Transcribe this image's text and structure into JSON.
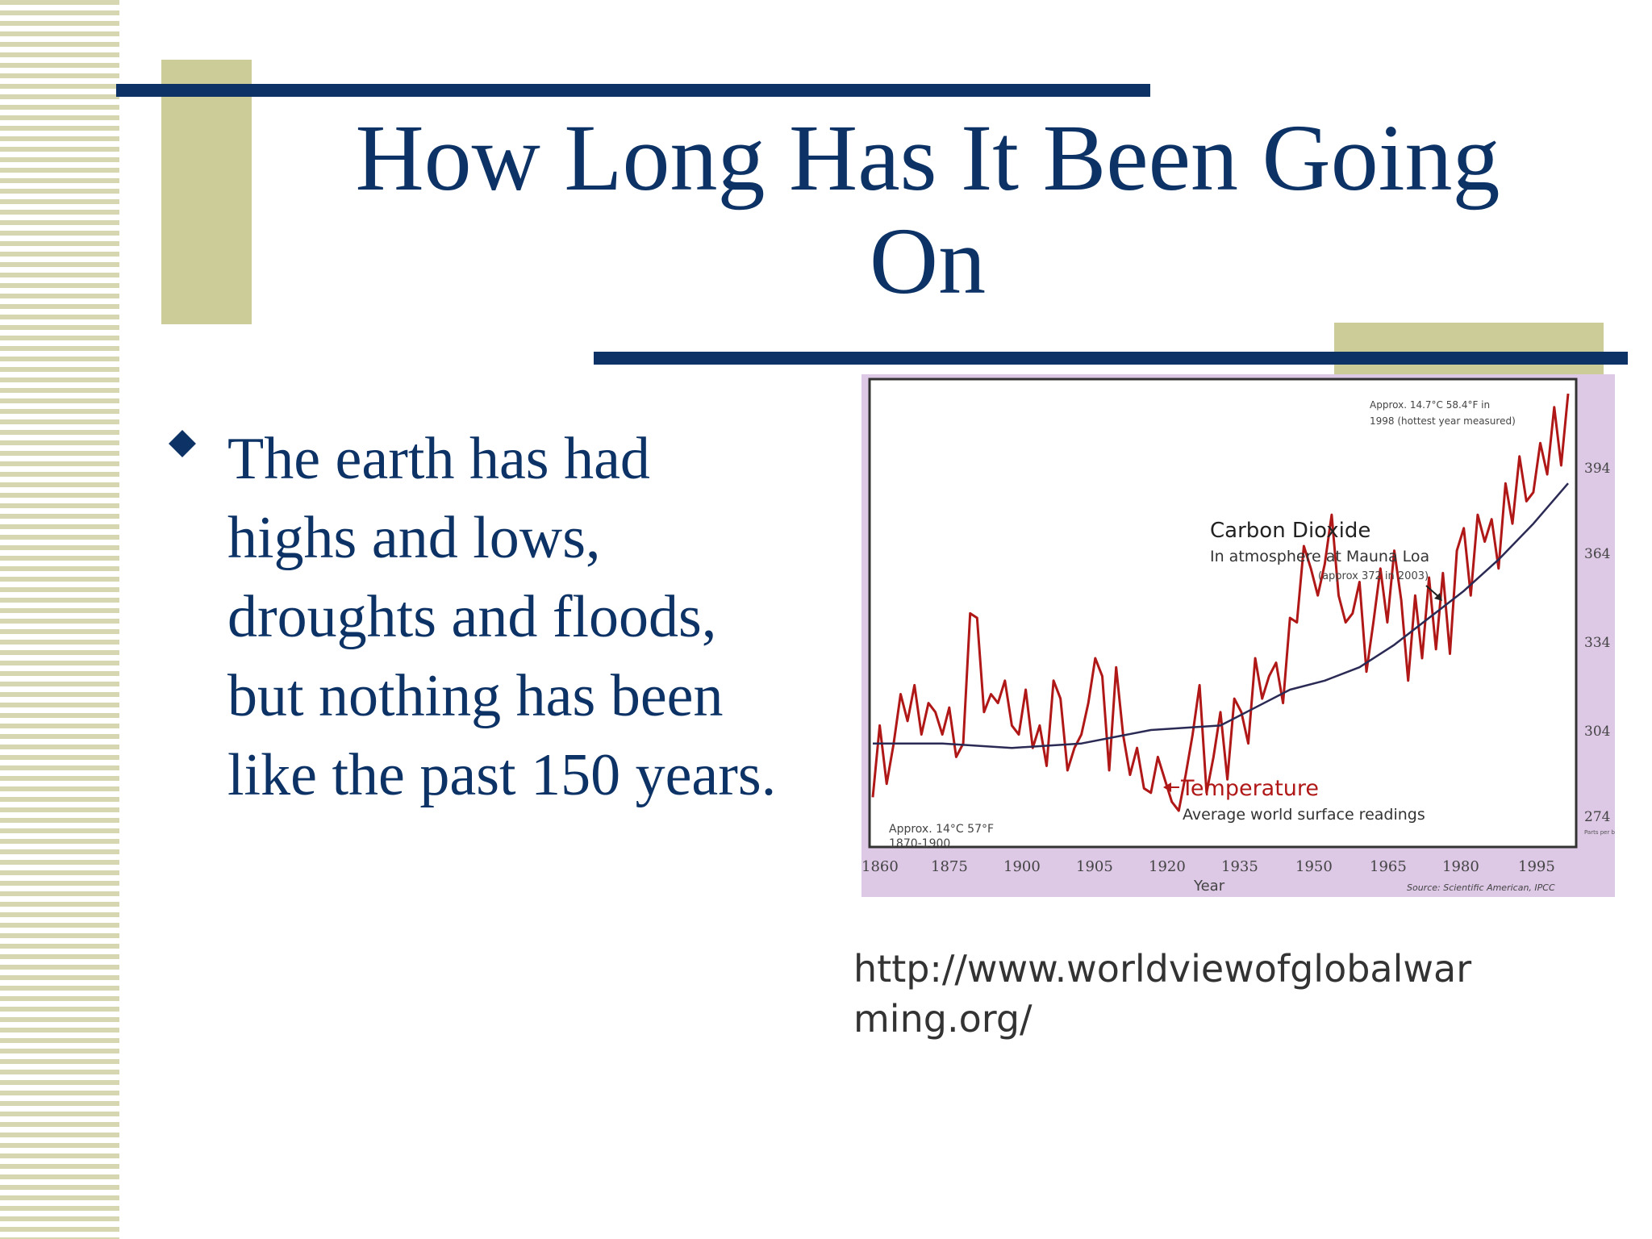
{
  "slide": {
    "title_line1": "How Long Has It Been Going",
    "title_line2": "On",
    "bullet_lines": [
      "The earth has had",
      "highs and lows,",
      "droughts and floods,",
      "but nothing has been",
      "like the past 150 years."
    ],
    "url_line1": "http://www.worldviewofglobalwar",
    "url_line2": "ming.org/"
  },
  "colors": {
    "title": "#0d3366",
    "accent_block": "#cccc99",
    "temperature_line": "#b01818",
    "co2_line": "#2a2a55"
  },
  "chart_data": {
    "type": "line",
    "xlabel": "Year",
    "x_ticks": [
      "1860",
      "1875",
      "1900",
      "1905",
      "1920",
      "1935",
      "1950",
      "1965",
      "1980",
      "1995"
    ],
    "right_ticks": [
      "394",
      "364",
      "334",
      "304",
      "274"
    ],
    "right_unit": "Parts per billion",
    "annotations": {
      "top_right": [
        "Approx. 14.7°C  58.4°F in",
        "1998 (hottest year measured)"
      ],
      "co2_title": "Carbon Dioxide",
      "co2_sub1": "In atmosphere at Mauna Loa",
      "co2_sub2": "(approx 372 in 2003)",
      "temp_title": "Temperature",
      "temp_sub": "Average world surface readings",
      "bottom_left": [
        "Approx. 14°C  57°F",
        "1870-1900"
      ],
      "source": "Source: Scientific American, IPCC"
    },
    "x_range": [
      0,
      100
    ],
    "y_range": [
      0,
      100
    ],
    "temperature": [
      [
        0,
        10
      ],
      [
        1,
        26
      ],
      [
        2,
        13
      ],
      [
        3,
        22
      ],
      [
        4,
        33
      ],
      [
        5,
        27
      ],
      [
        6,
        35
      ],
      [
        7,
        24
      ],
      [
        8,
        31
      ],
      [
        9,
        29
      ],
      [
        10,
        24
      ],
      [
        11,
        30
      ],
      [
        12,
        19
      ],
      [
        13,
        22
      ],
      [
        14,
        51
      ],
      [
        15,
        50
      ],
      [
        16,
        29
      ],
      [
        17,
        33
      ],
      [
        18,
        31
      ],
      [
        19,
        36
      ],
      [
        20,
        26
      ],
      [
        21,
        24
      ],
      [
        22,
        34
      ],
      [
        23,
        21
      ],
      [
        24,
        26
      ],
      [
        25,
        17
      ],
      [
        26,
        36
      ],
      [
        27,
        32
      ],
      [
        28,
        16
      ],
      [
        29,
        21
      ],
      [
        30,
        24
      ],
      [
        31,
        31
      ],
      [
        32,
        41
      ],
      [
        33,
        37
      ],
      [
        34,
        16
      ],
      [
        35,
        39
      ],
      [
        36,
        24
      ],
      [
        37,
        15
      ],
      [
        38,
        21
      ],
      [
        39,
        12
      ],
      [
        40,
        11
      ],
      [
        41,
        19
      ],
      [
        42,
        14
      ],
      [
        43,
        9
      ],
      [
        44,
        7
      ],
      [
        45,
        15
      ],
      [
        46,
        24
      ],
      [
        47,
        35
      ],
      [
        48,
        11
      ],
      [
        49,
        19
      ],
      [
        50,
        29
      ],
      [
        51,
        14
      ],
      [
        52,
        32
      ],
      [
        53,
        29
      ],
      [
        54,
        22
      ],
      [
        55,
        41
      ],
      [
        56,
        32
      ],
      [
        57,
        37
      ],
      [
        58,
        40
      ],
      [
        59,
        31
      ],
      [
        60,
        50
      ],
      [
        61,
        49
      ],
      [
        62,
        66
      ],
      [
        63,
        61
      ],
      [
        64,
        55
      ],
      [
        65,
        62
      ],
      [
        66,
        73
      ],
      [
        67,
        55
      ],
      [
        68,
        49
      ],
      [
        69,
        51
      ],
      [
        70,
        58
      ],
      [
        71,
        38
      ],
      [
        72,
        49
      ],
      [
        73,
        61
      ],
      [
        74,
        49
      ],
      [
        75,
        65
      ],
      [
        76,
        54
      ],
      [
        77,
        36
      ],
      [
        78,
        55
      ],
      [
        79,
        41
      ],
      [
        80,
        59
      ],
      [
        81,
        43
      ],
      [
        82,
        60
      ],
      [
        83,
        42
      ],
      [
        84,
        65
      ],
      [
        85,
        70
      ],
      [
        86,
        55
      ],
      [
        87,
        73
      ],
      [
        88,
        67
      ],
      [
        89,
        72
      ],
      [
        90,
        61
      ],
      [
        91,
        80
      ],
      [
        92,
        71
      ],
      [
        93,
        86
      ],
      [
        94,
        76
      ],
      [
        95,
        78
      ],
      [
        96,
        89
      ],
      [
        97,
        82
      ],
      [
        98,
        97
      ],
      [
        99,
        84
      ],
      [
        100,
        100
      ]
    ],
    "co2": [
      [
        0,
        22
      ],
      [
        10,
        22
      ],
      [
        20,
        21
      ],
      [
        30,
        22
      ],
      [
        40,
        25
      ],
      [
        50,
        26
      ],
      [
        55,
        30
      ],
      [
        60,
        34
      ],
      [
        65,
        36
      ],
      [
        70,
        39
      ],
      [
        75,
        44
      ],
      [
        80,
        50
      ],
      [
        85,
        56
      ],
      [
        90,
        63
      ],
      [
        95,
        71
      ],
      [
        100,
        80
      ]
    ]
  }
}
